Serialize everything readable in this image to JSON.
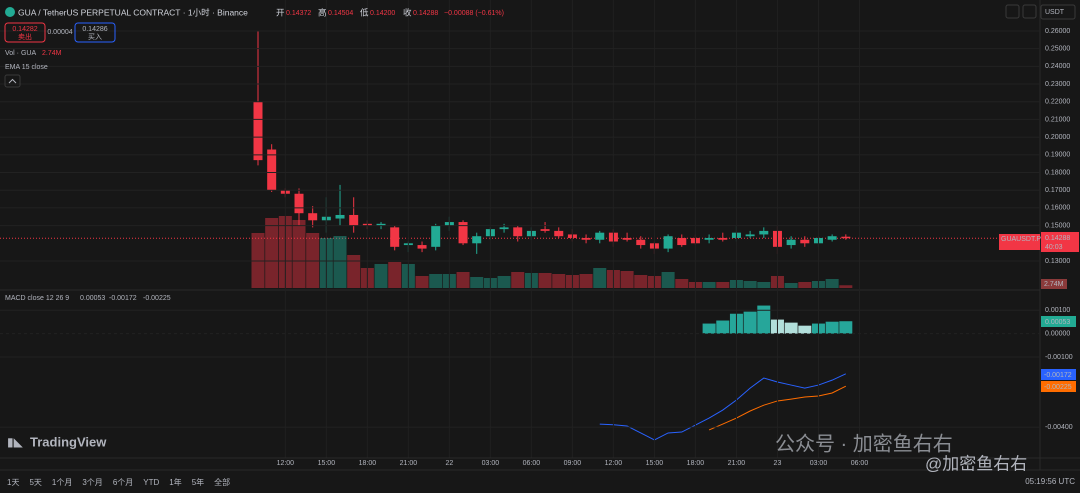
{
  "header": {
    "symbol": "GUA / TetherUS PERPETUAL CONTRACT · 1小时 · Binance",
    "open_label": "开",
    "open": "0.14372",
    "high_label": "高",
    "high": "0.14504",
    "low_label": "低",
    "low": "0.14200",
    "close_label": "收",
    "close": "0.14288",
    "change": "−0.00088 (−0.61%)"
  },
  "trade": {
    "sell_price": "0.14282",
    "sell_label": "卖出",
    "spread": "0.00004",
    "buy_price": "0.14286",
    "buy_label": "买入"
  },
  "toolbar": {
    "currency": "USDT"
  },
  "indicators": {
    "vol_label": "Vol · GUA",
    "vol_value": "2.74M",
    "ema_label": "EMA 15 close",
    "macd_label": "MACD close 12 26 9",
    "macd_hist": "0.00053",
    "macd_line": "-0.00172",
    "macd_signal": "-0.00225"
  },
  "price_tag": {
    "symbol": "GUAUSDT.P",
    "price": "0.14288",
    "countdown": "40:03"
  },
  "chart_data": {
    "type": "candlestick",
    "categories": [
      null,
      null,
      "12:00",
      null,
      null,
      "15:00",
      null,
      null,
      "18:00",
      null,
      null,
      "21:00",
      null,
      null,
      "22",
      null,
      null,
      "03:00",
      null,
      null,
      "06:00",
      null,
      null,
      "09:00",
      null,
      null,
      "12:00",
      null,
      null,
      "15:00",
      null,
      null,
      "18:00",
      null,
      null,
      "21:00",
      null,
      null,
      "23",
      null,
      null,
      "03:00",
      null,
      null,
      "06:00"
    ],
    "open": [
      0.22,
      0.193,
      0.17,
      0.168,
      0.157,
      0.153,
      0.154,
      0.156,
      0.151,
      0.15,
      0.149,
      0.139,
      0.139,
      0.138,
      0.15,
      0.152,
      0.14,
      0.144,
      0.148,
      0.149,
      0.144,
      0.148,
      0.147,
      0.145,
      0.143,
      0.142,
      0.146,
      0.143,
      0.142,
      0.14,
      0.137,
      0.143,
      0.143,
      0.142,
      0.143,
      0.143,
      0.144,
      0.145,
      0.147,
      0.139,
      0.142,
      0.14,
      0.142,
      0.14372,
      null
    ],
    "high": [
      0.26,
      0.196,
      0.171,
      0.171,
      0.161,
      0.166,
      0.173,
      0.166,
      0.153,
      0.152,
      0.15,
      0.141,
      0.141,
      0.151,
      0.155,
      0.153,
      0.146,
      0.149,
      0.151,
      0.15,
      0.149,
      0.152,
      0.149,
      0.148,
      0.145,
      0.147,
      0.148,
      0.146,
      0.144,
      0.141,
      0.145,
      0.145,
      0.145,
      0.145,
      0.146,
      0.15,
      0.147,
      0.149,
      0.15,
      0.144,
      0.144,
      0.144,
      0.145,
      0.14504,
      null
    ],
    "low": [
      0.184,
      0.169,
      0.166,
      0.15,
      0.149,
      0.146,
      0.15,
      0.146,
      0.148,
      0.148,
      0.136,
      0.135,
      0.135,
      0.136,
      0.147,
      0.139,
      0.134,
      0.142,
      0.146,
      0.141,
      0.142,
      0.146,
      0.143,
      0.141,
      0.14,
      0.14,
      0.138,
      0.141,
      0.137,
      0.134,
      0.135,
      0.138,
      0.139,
      0.14,
      0.141,
      0.141,
      0.143,
      0.143,
      0.134,
      0.137,
      0.138,
      0.138,
      0.141,
      0.142,
      null
    ],
    "close": [
      0.187,
      0.17,
      0.168,
      0.157,
      0.153,
      0.155,
      0.156,
      0.15,
      0.15,
      0.151,
      0.138,
      0.14,
      0.137,
      0.15,
      0.152,
      0.14,
      0.144,
      0.148,
      0.149,
      0.144,
      0.147,
      0.147,
      0.144,
      0.143,
      0.142,
      0.146,
      0.141,
      0.142,
      0.139,
      0.137,
      0.144,
      0.139,
      0.14,
      0.143,
      0.142,
      0.146,
      0.145,
      0.147,
      0.138,
      0.142,
      0.14,
      0.143,
      0.144,
      0.14288,
      null
    ],
    "up_color": "#22ab94",
    "down_color": "#f23645",
    "ylim": [
      0.1136,
      0.2775
    ],
    "yticks": [
      {
        "value": 0.26,
        "label": "0.26000"
      },
      {
        "value": 0.25,
        "label": "0.25000"
      },
      {
        "value": 0.24,
        "label": "0.24000"
      },
      {
        "value": 0.23,
        "label": "0.23000"
      },
      {
        "value": 0.22,
        "label": "0.22000"
      },
      {
        "value": 0.21,
        "label": "0.21000"
      },
      {
        "value": 0.2,
        "label": "0.20000"
      },
      {
        "value": 0.19,
        "label": "0.19000"
      },
      {
        "value": 0.18,
        "label": "0.18000"
      },
      {
        "value": 0.17,
        "label": "0.17000"
      },
      {
        "value": 0.16,
        "label": "0.16000"
      },
      {
        "value": 0.15,
        "label": "0.15000"
      },
      {
        "value": 0.13,
        "label": "0.13000"
      }
    ],
    "grid": true,
    "volume": {
      "values": [
        55,
        70,
        72,
        68,
        55,
        50,
        52,
        33,
        20,
        24,
        26,
        24,
        12,
        14,
        14,
        16,
        11,
        10,
        12,
        16,
        15,
        15,
        14,
        13,
        14,
        20,
        18,
        17,
        13,
        12,
        16,
        9,
        6,
        6,
        6,
        8,
        7,
        6,
        12,
        5,
        6,
        7,
        9,
        2.74,
        null
      ],
      "ylim": [
        0,
        288
      ]
    },
    "macd": {
      "macd": [
        null,
        null,
        null,
        null,
        null,
        null,
        null,
        null,
        null,
        null,
        null,
        null,
        null,
        null,
        null,
        null,
        null,
        null,
        null,
        null,
        null,
        null,
        null,
        null,
        null,
        -0.00387,
        -0.0039,
        -0.00395,
        -0.00425,
        -0.00455,
        -0.00425,
        -0.00421,
        -0.00391,
        -0.00361,
        -0.00327,
        -0.00284,
        -0.00233,
        -0.0019,
        -0.00207,
        -0.0022,
        -0.00233,
        -0.0022,
        -0.00199,
        -0.00172,
        null
      ],
      "signal": [
        null,
        null,
        null,
        null,
        null,
        null,
        null,
        null,
        null,
        null,
        null,
        null,
        null,
        null,
        null,
        null,
        null,
        null,
        null,
        null,
        null,
        null,
        null,
        null,
        null,
        null,
        null,
        null,
        null,
        null,
        null,
        null,
        null,
        -0.00412,
        -0.00387,
        -0.00361,
        -0.00331,
        -0.00306,
        -0.00288,
        -0.0028,
        -0.00271,
        -0.00267,
        -0.00254,
        -0.00225,
        null
      ],
      "hist": [
        null,
        null,
        null,
        null,
        null,
        null,
        null,
        null,
        null,
        null,
        null,
        null,
        null,
        null,
        null,
        null,
        null,
        null,
        null,
        null,
        null,
        null,
        null,
        null,
        null,
        null,
        null,
        null,
        null,
        null,
        null,
        null,
        null,
        0.00043,
        0.00056,
        0.00085,
        0.00094,
        0.0012,
        0.0006,
        0.00047,
        0.00034,
        0.00043,
        0.00051,
        0.00053,
        null
      ],
      "ylim": [
        -0.00532,
        0.00178
      ],
      "yticks": [
        {
          "value": 0.001,
          "label": "0.00100"
        },
        {
          "value": 0,
          "label": "0.00000"
        },
        {
          "value": -0.001,
          "label": "-0.00100"
        },
        {
          "value": -0.004,
          "label": "-0.00400"
        }
      ],
      "macd_color": "#2962ff",
      "signal_color": "#ff6d00",
      "hist_up_color": "#26a69a",
      "hist_down_color": "#b2dfdb"
    }
  },
  "footer": {
    "ranges": [
      "1天",
      "5天",
      "1个月",
      "3个月",
      "6个月",
      "YTD",
      "1年",
      "5年",
      "全部"
    ],
    "time": "05:19:56 UTC"
  },
  "branding": {
    "logo": "TradingView",
    "watermark": "公众号 · 加密鱼右右",
    "handle": "@加密鱼右右"
  }
}
